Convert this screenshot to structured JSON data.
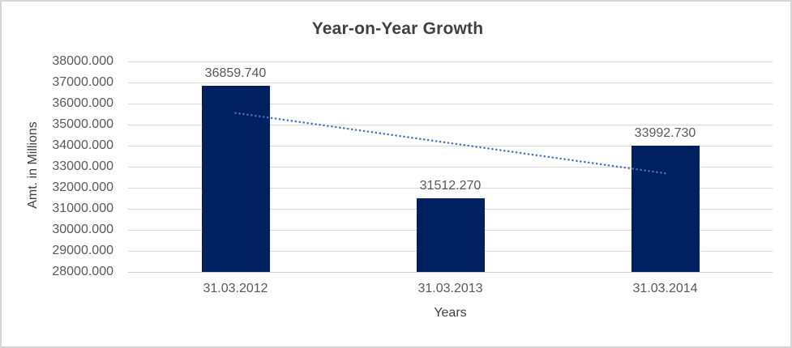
{
  "frame": {
    "background": "#ffffff",
    "border_color": "#d6d6d6"
  },
  "chart_data": {
    "type": "bar",
    "title": "Year-on-Year Growth",
    "xlabel": "Years",
    "ylabel": "Amt. in Millions",
    "categories": [
      "31.03.2012",
      "31.03.2013",
      "31.03.2014"
    ],
    "values": [
      36859.74,
      31512.27,
      33992.73
    ],
    "value_labels": [
      "36859.740",
      "31512.270",
      "33992.730"
    ],
    "ylim": [
      28000,
      38000
    ],
    "ytick_step": 1000,
    "ytick_labels": [
      "38000.000",
      "37000.000",
      "36000.000",
      "35000.000",
      "34000.000",
      "33000.000",
      "32000.000",
      "31000.000",
      "30000.000",
      "29000.000",
      "28000.000"
    ],
    "grid": "horizontal",
    "legend": "none",
    "bar_color": "#002060",
    "gridline_color": "#d9d9d9",
    "trendline": {
      "type": "linear",
      "style": "dotted",
      "color": "#4472C4",
      "endpoint_values": [
        35555.08,
        32688.07
      ]
    },
    "text_colors": {
      "title": "#404040",
      "axis_titles": "#404040",
      "tick_labels": "#595959",
      "value_labels": "#595959"
    }
  }
}
